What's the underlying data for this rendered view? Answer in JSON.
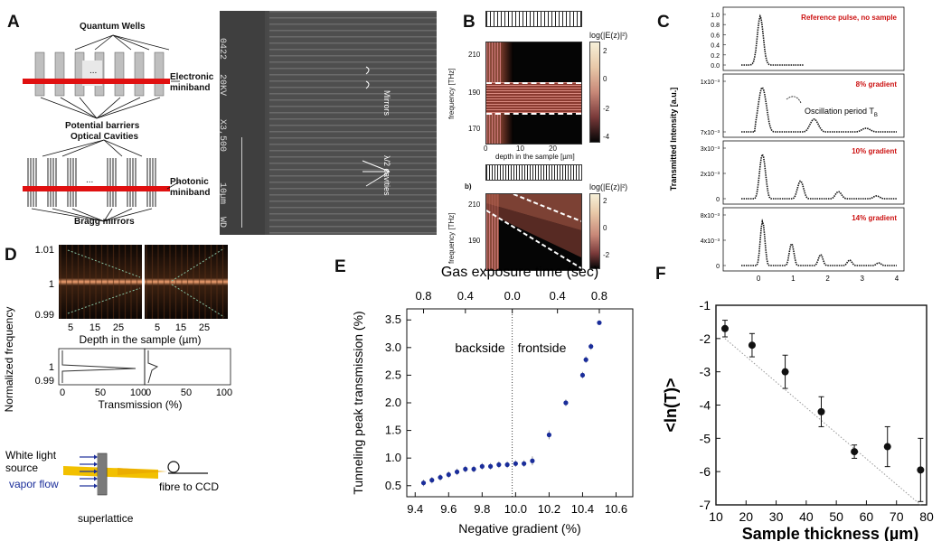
{
  "panel_labels": [
    "A",
    "B",
    "C",
    "D",
    "E",
    "F"
  ],
  "panel_a": {
    "quantum_wells": "Quantum Wells",
    "electronic_miniband": "Electronic miniband",
    "potential_barriers": "Potential barriers",
    "optical_cavities": "Optical Cavities",
    "photonic_miniband": "Photonic miniband",
    "bragg_mirrors": "Bragg mirrors",
    "ellipsis": "...",
    "sem_text": [
      "0422",
      "20KV",
      "X3,500",
      "10µm",
      "WD"
    ],
    "sem_mirrors": "Mirrors",
    "sem_cavities": "λ/2 cavities"
  },
  "panel_b": {
    "cbar_title": "log(|E(z)|²)",
    "ylabel": "frequency [THz]",
    "xlabel": "depth in the sample [µm]",
    "top_yticks": [
      "210",
      "190",
      "170"
    ],
    "top_xticks": [
      "0",
      "10",
      "20"
    ],
    "top_cticks": [
      "2",
      "0",
      "-2",
      "-4"
    ],
    "bottom_label": "b)",
    "bottom_yticks": [
      "210",
      "190"
    ],
    "bottom_cticks": [
      "2",
      "0",
      "-2"
    ]
  },
  "chart_data": [
    {
      "type": "line",
      "title": "Panel C",
      "ylabel": "Transmitted Intensity [a.u.]",
      "x_ticks": [
        "0",
        "1",
        "2",
        "3",
        "4"
      ],
      "subplots": [
        {
          "label": "Reference pulse, no sample",
          "yticks": [
            "1.0",
            "0.8",
            "0.6",
            "0.4",
            "0.2",
            "0.0"
          ]
        },
        {
          "label": "8% gradient",
          "yticks": [
            "1x10⁻³",
            "7x10⁻³"
          ],
          "annotation": "Oscillation period T",
          "annotation_sub": "B"
        },
        {
          "label": "10% gradient",
          "yticks": [
            "3x10⁻³",
            "2x10⁻³",
            "0"
          ]
        },
        {
          "label": "14% gradient",
          "yticks": [
            "8x10⁻³",
            "4x10⁻³",
            "0"
          ]
        }
      ]
    },
    {
      "type": "heatmap",
      "title": "Panel D",
      "ylabel": "Normalized frequency",
      "xlabel": "Depth in the sample (µm)",
      "yticks": [
        "1.01",
        "1",
        "0.99"
      ],
      "xticks": [
        "5",
        "15",
        "25"
      ],
      "trans_yticks": [
        "1",
        "0.99"
      ],
      "trans_xticks": [
        "0",
        "50",
        "100"
      ],
      "trans_xlabel": "Transmission (%)",
      "setup": {
        "source": "White light source",
        "vapor": "vapor flow",
        "sample": "superlattice",
        "detector": "fibre to CCD"
      }
    },
    {
      "type": "scatter",
      "title": "Panel E",
      "xlabel": "Negative gradient (%)",
      "ylabel": "Tunneling peak transmission (%)",
      "top_xlabel": "Gas exposure time (sec)",
      "top_xticks": [
        "0.8",
        "0.4",
        "0.0",
        "0.4",
        "0.8"
      ],
      "xticks": [
        "9.4",
        "9.6",
        "9.8",
        "10.0",
        "10.2",
        "10.4",
        "10.6"
      ],
      "yticks": [
        "0.5",
        "1.0",
        "1.5",
        "2.0",
        "2.5",
        "3.0",
        "3.5"
      ],
      "xlim": [
        9.35,
        10.7
      ],
      "ylim": [
        0.3,
        3.7
      ],
      "region_left": "backside",
      "region_right": "frontside",
      "divider_x": 9.98,
      "x": [
        9.45,
        9.5,
        9.55,
        9.6,
        9.65,
        9.7,
        9.75,
        9.8,
        9.85,
        9.9,
        9.95,
        10.0,
        10.05,
        10.1,
        10.2,
        10.3,
        10.4,
        10.42,
        10.45,
        10.5
      ],
      "y": [
        0.55,
        0.6,
        0.65,
        0.7,
        0.75,
        0.8,
        0.8,
        0.85,
        0.85,
        0.88,
        0.88,
        0.9,
        0.9,
        0.95,
        1.42,
        2.0,
        2.5,
        2.78,
        3.02,
        3.45
      ],
      "err": [
        0.06,
        0.06,
        0.06,
        0.06,
        0.06,
        0.06,
        0.06,
        0.06,
        0.06,
        0.06,
        0.06,
        0.06,
        0.06,
        0.08,
        0.08,
        0.06,
        0.06,
        0.06,
        0.06,
        0.04
      ]
    },
    {
      "type": "scatter",
      "title": "Panel F",
      "xlabel": "Sample thickness (µm)",
      "ylabel": "<ln(T)>",
      "xticks": [
        "10",
        "20",
        "30",
        "40",
        "50",
        "60",
        "70",
        "80"
      ],
      "yticks": [
        "-1",
        "-2",
        "-3",
        "-4",
        "-5",
        "-6",
        "-7"
      ],
      "xlim": [
        10,
        80
      ],
      "ylim": [
        -7,
        -1
      ],
      "x": [
        13,
        22,
        33,
        45,
        56,
        67,
        78
      ],
      "y": [
        -1.7,
        -2.2,
        -3.0,
        -4.2,
        -5.4,
        -5.25,
        -5.95
      ],
      "err": [
        0.25,
        0.35,
        0.5,
        0.45,
        0.2,
        0.6,
        0.95
      ],
      "fit": {
        "x": [
          13,
          78
        ],
        "y": [
          -2.0,
          -7.0
        ]
      }
    }
  ]
}
